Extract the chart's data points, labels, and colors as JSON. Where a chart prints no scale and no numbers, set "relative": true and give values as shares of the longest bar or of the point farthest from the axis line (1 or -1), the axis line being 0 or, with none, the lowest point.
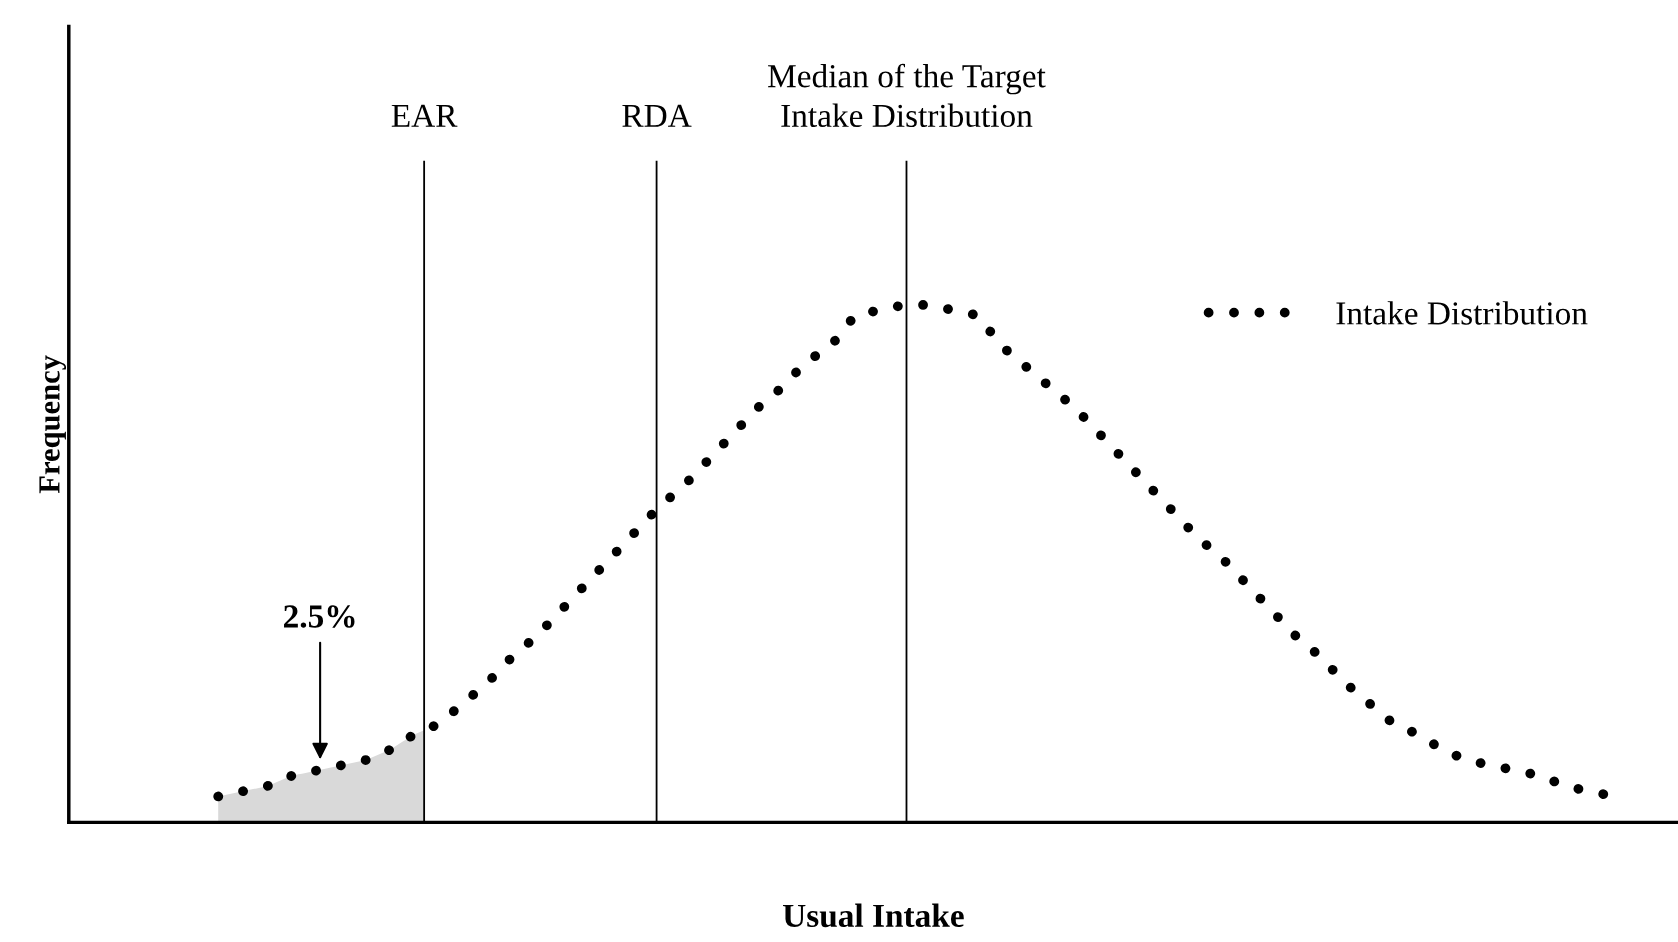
{
  "chart_data": {
    "type": "line",
    "relative": true,
    "xlabel": "Usual Intake",
    "ylabel": "Frequency",
    "legend": "top right",
    "line_style": "dotted",
    "categories": [
      null,
      null,
      null,
      null,
      null,
      null,
      null,
      null,
      null,
      null,
      null,
      null,
      null,
      null,
      null,
      null,
      null,
      null,
      null,
      null,
      null,
      null,
      null,
      null,
      null,
      null,
      null,
      null,
      null,
      null,
      null,
      null,
      null,
      null,
      null,
      null,
      null,
      null,
      null,
      null,
      null,
      null,
      null,
      null,
      null,
      null,
      null,
      null,
      null,
      null,
      null,
      null,
      null,
      null,
      null,
      null,
      null,
      null
    ],
    "series": [
      {
        "name": "Intake Distribution",
        "color": "#000000",
        "values": [
          0.05,
          0.06,
          0.07,
          0.09,
          0.1,
          0.11,
          0.12,
          0.14,
          0.17,
          0.19,
          0.23,
          0.27,
          0.32,
          0.36,
          0.41,
          0.46,
          0.51,
          0.56,
          0.61,
          0.65,
          0.7,
          0.75,
          0.8,
          0.84,
          0.89,
          0.92,
          0.98,
          0.99,
          1.0,
          1.0,
          0.99,
          0.98,
          0.92,
          0.88,
          0.84,
          0.8,
          0.75,
          0.7,
          0.65,
          0.6,
          0.55,
          0.51,
          0.46,
          0.41,
          0.36,
          0.32,
          0.27,
          0.23,
          0.19,
          0.17,
          0.14,
          0.12,
          0.11,
          0.1,
          0.09,
          0.07,
          0.06,
          0.05
        ]
      }
    ],
    "annotations": [
      "2.5%",
      "EAR",
      "RDA",
      "Median of the Target\nIntake Distribution"
    ]
  }
}
